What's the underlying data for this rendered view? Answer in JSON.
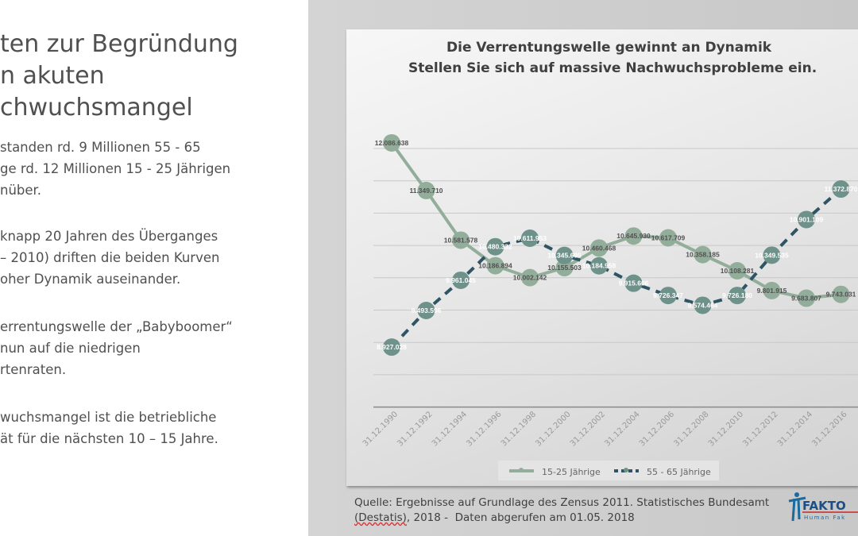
{
  "slide": {
    "title_lines": [
      "ten zur Begründung",
      "n akuten",
      "chwuchsmangel"
    ],
    "paragraphs": [
      [
        "standen rd. 9 Millionen 55 - 65",
        "ge rd. 12 Millionen 15 - 25 Jährigen",
        "nüber."
      ],
      [
        "knapp 20 Jahren des Überganges",
        "– 2010) driften die beiden Kurven",
        "oher Dynamik auseinander."
      ],
      [
        "errentungswelle der „Babyboomer“",
        "nun auf die niedrigen",
        "rtenraten."
      ],
      [
        "wuchsmangel ist die betriebliche",
        "ät für die nächsten 10 – 15 Jahre."
      ]
    ]
  },
  "source": {
    "line1": "Quelle: Ergebnisse auf Grundlage des Zensus 2011. Statistisches Bundesamt",
    "line2_a": "(Destatis)",
    "line2_b": ", 2018 -  Daten abgerufen am 01.05. 2018"
  },
  "logo": {
    "name": "FAKTO",
    "tagline": "Human Fak"
  },
  "chart_data": {
    "type": "line",
    "title": "Die Verrentungswelle gewinnt an Dynamik",
    "subtitle": "Stellen Sie sich auf massive Nachwuchsprobleme ein.",
    "categories": [
      "31.12.1990",
      "31.12.1992",
      "31.12.1994",
      "31.12.1996",
      "31.12.1998",
      "31.12.2000",
      "31.12.2002",
      "31.12.2004",
      "31.12.2006",
      "31.12.2008",
      "31.12.2010",
      "31.12.2012",
      "31.12.2014",
      "31.12.2016"
    ],
    "ylim": [
      8000000,
      12500000
    ],
    "grid": true,
    "legend_position": "bottom",
    "series": [
      {
        "name": "15-25 Jährige",
        "color": "#93ad9b",
        "marker": "#93ad9b",
        "label_color": "#505050",
        "dashed": false,
        "values": [
          12086638,
          11349710,
          10581578,
          10186894,
          10002142,
          10155503,
          10460468,
          10645930,
          10617709,
          10358185,
          10108281,
          9801915,
          9683807,
          9743031
        ],
        "labels": [
          "12.086.638",
          "11.349.710",
          "10.581.578",
          "10.186.894",
          "10.002.142",
          "10.155.503",
          "10.460.468",
          "10.645.930",
          "10.617.709",
          "10.358.185",
          "10.108.281",
          "9.801.915",
          "9.683.807",
          "9.743.031"
        ]
      },
      {
        "name": "55 - 65 Jährige",
        "color": "#2f5565",
        "marker": "#6e918a",
        "label_color": "#ffffff",
        "dashed": true,
        "values": [
          8927028,
          9493596,
          9961045,
          10480332,
          10611953,
          10345695,
          10184958,
          9915606,
          9726347,
          9574464,
          9726180,
          10349535,
          10901109,
          11372870
        ],
        "labels": [
          "8.927.028",
          "9.493.596",
          "9.961.045",
          "10.480.332",
          "10.611.953",
          "10.345.695",
          "10.184.958",
          "9.915.606",
          "9.726.347",
          "9.574.464",
          "9.726.180",
          "10.349.535",
          "10.901.109",
          "11.372.870"
        ]
      }
    ]
  }
}
